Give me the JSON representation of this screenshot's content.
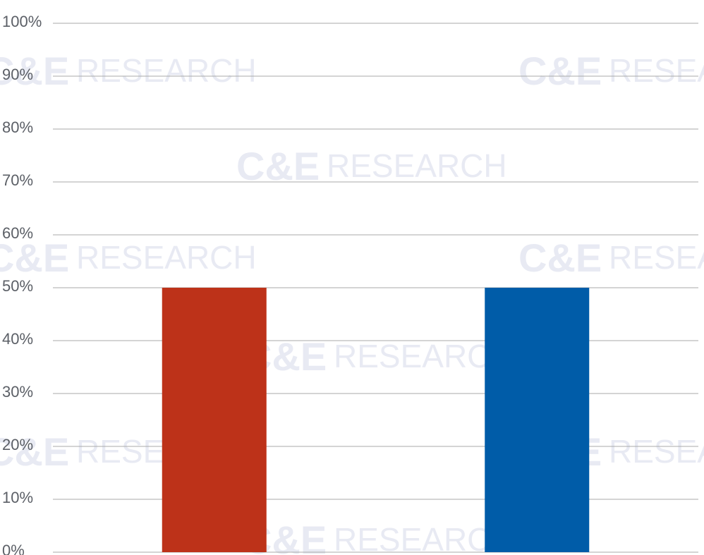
{
  "chart_data": {
    "type": "bar",
    "categories": [
      "",
      ""
    ],
    "values": [
      50,
      50
    ],
    "colors": [
      "#bd3219",
      "#005ca8"
    ],
    "ylim": [
      0,
      100
    ],
    "yticks": [
      "0%",
      "10%",
      "20%",
      "30%",
      "40%",
      "50%",
      "60%",
      "70%",
      "80%",
      "90%",
      "100%"
    ],
    "grid": true,
    "gridline_color": "#a9a9a9"
  },
  "watermark": {
    "brand": "C&E",
    "word": "RESEARCH",
    "color": "#e8eaf3"
  }
}
